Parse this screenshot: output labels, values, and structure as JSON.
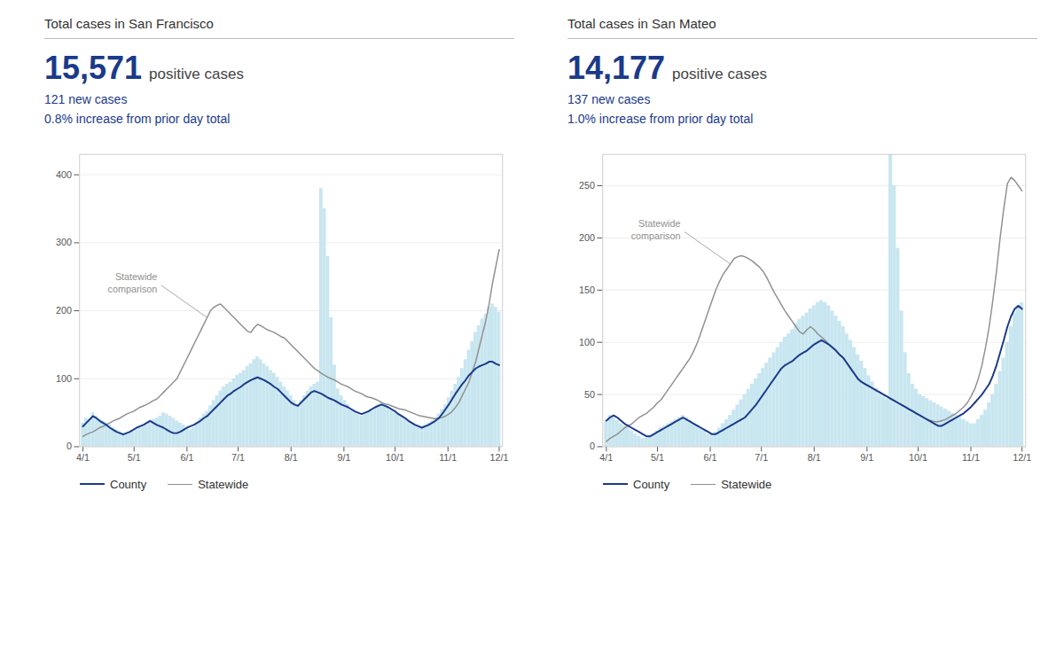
{
  "chart_data": [
    {
      "type": "bar",
      "title": "Total cases in San Francisco",
      "headline": "15,571",
      "headline_label": "positive cases",
      "subtitle": [
        "121 new cases",
        "0.8% increase from prior day total"
      ],
      "values": [
        35,
        42,
        38,
        50,
        45,
        40,
        38,
        35,
        32,
        28,
        25,
        22,
        20,
        18,
        20,
        22,
        25,
        28,
        30,
        32,
        35,
        40,
        42,
        45,
        50,
        48,
        45,
        42,
        38,
        35,
        32,
        28,
        25,
        28,
        35,
        42,
        48,
        52,
        60,
        68,
        75,
        82,
        88,
        92,
        95,
        100,
        105,
        108,
        112,
        118,
        122,
        128,
        132,
        128,
        122,
        118,
        112,
        108,
        102,
        95,
        88,
        82,
        75,
        68,
        62,
        68,
        75,
        82,
        88,
        92,
        95,
        380,
        350,
        280,
        190,
        120,
        85,
        75,
        68,
        62,
        55,
        50,
        48,
        45,
        48,
        52,
        55,
        58,
        62,
        65,
        62,
        58,
        55,
        50,
        48,
        45,
        42,
        38,
        35,
        32,
        30,
        28,
        32,
        35,
        38,
        42,
        48,
        55,
        62,
        72,
        82,
        92,
        102,
        115,
        128,
        142,
        155,
        168,
        178,
        188,
        195,
        205,
        210,
        205,
        198
      ],
      "color": "#c8e6f0",
      "series": [
        {
          "name": "County",
          "type": "line",
          "color": "#1a3a8a",
          "values": [
            30,
            35,
            40,
            45,
            42,
            38,
            35,
            32,
            28,
            25,
            22,
            20,
            18,
            20,
            22,
            25,
            28,
            30,
            32,
            35,
            38,
            35,
            32,
            30,
            28,
            25,
            22,
            20,
            20,
            22,
            25,
            28,
            30,
            32,
            35,
            38,
            42,
            45,
            50,
            55,
            60,
            65,
            70,
            75,
            78,
            82,
            85,
            88,
            92,
            95,
            98,
            100,
            102,
            100,
            98,
            95,
            92,
            88,
            85,
            80,
            75,
            70,
            65,
            62,
            60,
            65,
            70,
            75,
            80,
            82,
            80,
            78,
            75,
            72,
            70,
            68,
            65,
            62,
            60,
            58,
            55,
            52,
            50,
            48,
            50,
            52,
            55,
            58,
            60,
            62,
            60,
            58,
            55,
            52,
            48,
            45,
            42,
            38,
            35,
            32,
            30,
            28,
            30,
            32,
            35,
            38,
            42,
            48,
            55,
            62,
            70,
            78,
            85,
            92,
            98,
            105,
            110,
            115,
            118,
            120,
            122,
            125,
            125,
            122,
            120
          ]
        },
        {
          "name": "Statewide",
          "type": "line",
          "color": "#909090",
          "values": [
            15,
            18,
            20,
            22,
            25,
            28,
            30,
            32,
            35,
            38,
            40,
            42,
            45,
            48,
            50,
            52,
            55,
            58,
            60,
            62,
            65,
            68,
            70,
            75,
            80,
            85,
            90,
            95,
            100,
            110,
            120,
            130,
            140,
            150,
            160,
            170,
            180,
            190,
            200,
            205,
            208,
            210,
            205,
            200,
            195,
            190,
            185,
            180,
            175,
            170,
            168,
            175,
            180,
            178,
            175,
            172,
            170,
            168,
            165,
            162,
            160,
            155,
            150,
            145,
            140,
            135,
            130,
            125,
            120,
            115,
            112,
            108,
            105,
            102,
            100,
            98,
            95,
            92,
            90,
            88,
            85,
            82,
            80,
            78,
            75,
            73,
            72,
            70,
            68,
            65,
            63,
            62,
            60,
            58,
            56,
            55,
            54,
            52,
            50,
            48,
            46,
            45,
            44,
            43,
            42,
            41,
            42,
            43,
            45,
            48,
            52,
            58,
            65,
            75,
            85,
            95,
            110,
            125,
            145,
            165,
            185,
            210,
            240,
            265,
            290
          ]
        }
      ],
      "annotations": [
        "Statewide\ncomparison"
      ],
      "xlim": [
        -1,
        125
      ],
      "xticks": [
        {
          "value": 0,
          "label": "4/1"
        },
        {
          "value": 15.2459,
          "label": "5/1"
        },
        {
          "value": 31,
          "label": "6/1"
        },
        {
          "value": 46.2459,
          "label": "7/1"
        },
        {
          "value": 62,
          "label": "8/1"
        },
        {
          "value": 77.7541,
          "label": "9/1"
        },
        {
          "value": 93,
          "label": "10/1"
        },
        {
          "value": 108.7541,
          "label": "11/1"
        },
        {
          "value": 124,
          "label": "12/1"
        }
      ],
      "ylim": [
        0,
        430
      ],
      "yticks": [
        0,
        100,
        200,
        300,
        400
      ],
      "grid": true,
      "legend": "lower left"
    },
    {
      "type": "bar",
      "title": "Total cases in San Mateo",
      "headline": "14,177",
      "headline_label": "positive cases",
      "subtitle": [
        "137 new cases",
        "1.0% increase from prior day total"
      ],
      "values": [
        25,
        30,
        28,
        25,
        22,
        20,
        18,
        15,
        12,
        10,
        8,
        8,
        10,
        12,
        15,
        18,
        20,
        22,
        24,
        26,
        28,
        30,
        28,
        25,
        22,
        20,
        18,
        15,
        12,
        12,
        14,
        18,
        22,
        26,
        30,
        35,
        40,
        45,
        50,
        55,
        60,
        65,
        70,
        75,
        80,
        85,
        90,
        95,
        100,
        105,
        108,
        112,
        118,
        122,
        125,
        128,
        132,
        135,
        138,
        140,
        138,
        135,
        130,
        125,
        120,
        115,
        108,
        102,
        95,
        88,
        82,
        75,
        68,
        62,
        56,
        52,
        48,
        46,
        280,
        250,
        190,
        130,
        90,
        70,
        60,
        55,
        50,
        48,
        46,
        44,
        42,
        40,
        38,
        36,
        34,
        32,
        30,
        28,
        26,
        24,
        22,
        22,
        26,
        30,
        35,
        42,
        50,
        60,
        72,
        85,
        100,
        115,
        128,
        135,
        138
      ],
      "color": "#c8e6f0",
      "series": [
        {
          "name": "County",
          "type": "line",
          "color": "#1a3a8a",
          "values": [
            25,
            28,
            30,
            28,
            25,
            22,
            20,
            18,
            16,
            14,
            12,
            10,
            10,
            12,
            14,
            16,
            18,
            20,
            22,
            24,
            26,
            28,
            26,
            24,
            22,
            20,
            18,
            16,
            14,
            12,
            12,
            14,
            16,
            18,
            20,
            22,
            24,
            26,
            28,
            32,
            36,
            40,
            45,
            50,
            55,
            60,
            65,
            70,
            75,
            78,
            80,
            82,
            85,
            88,
            90,
            92,
            95,
            98,
            100,
            102,
            100,
            98,
            95,
            92,
            88,
            85,
            80,
            75,
            70,
            65,
            62,
            60,
            58,
            56,
            54,
            52,
            50,
            48,
            46,
            44,
            42,
            40,
            38,
            36,
            34,
            32,
            30,
            28,
            26,
            24,
            22,
            20,
            20,
            22,
            24,
            26,
            28,
            30,
            32,
            35,
            38,
            42,
            46,
            50,
            55,
            60,
            68,
            78,
            90,
            102,
            115,
            125,
            132,
            135,
            132
          ]
        },
        {
          "name": "Statewide",
          "type": "line",
          "color": "#909090",
          "values": [
            5,
            8,
            10,
            12,
            15,
            18,
            20,
            22,
            25,
            28,
            30,
            32,
            35,
            38,
            42,
            45,
            50,
            55,
            60,
            65,
            70,
            75,
            80,
            85,
            92,
            100,
            110,
            120,
            130,
            140,
            150,
            158,
            165,
            170,
            175,
            180,
            182,
            183,
            182,
            180,
            178,
            175,
            172,
            168,
            162,
            155,
            148,
            142,
            136,
            130,
            125,
            120,
            115,
            110,
            108,
            112,
            115,
            112,
            108,
            105,
            102,
            98,
            95,
            92,
            88,
            85,
            80,
            75,
            70,
            65,
            62,
            60,
            58,
            56,
            54,
            52,
            50,
            48,
            46,
            44,
            42,
            40,
            38,
            36,
            34,
            32,
            30,
            28,
            26,
            25,
            24,
            24,
            25,
            26,
            28,
            30,
            32,
            35,
            38,
            42,
            48,
            55,
            65,
            78,
            95,
            115,
            140,
            168,
            200,
            228,
            252,
            258,
            255,
            250,
            245
          ]
        }
      ],
      "annotations": [
        "Statewide\ncomparison"
      ],
      "xlim": [
        -1,
        115
      ],
      "xticks": [
        {
          "value": 0,
          "label": "4/1"
        },
        {
          "value": 14.0164,
          "label": "5/1"
        },
        {
          "value": 28.5,
          "label": "6/1"
        },
        {
          "value": 42.5164,
          "label": "7/1"
        },
        {
          "value": 57,
          "label": "8/1"
        },
        {
          "value": 71.4836,
          "label": "9/1"
        },
        {
          "value": 85.5,
          "label": "10/1"
        },
        {
          "value": 99.9836,
          "label": "11/1"
        },
        {
          "value": 114,
          "label": "12/1"
        }
      ],
      "ylim": [
        0,
        280
      ],
      "yticks": [
        0,
        50,
        100,
        150,
        200,
        250
      ],
      "grid": true,
      "legend": "lower left"
    }
  ]
}
